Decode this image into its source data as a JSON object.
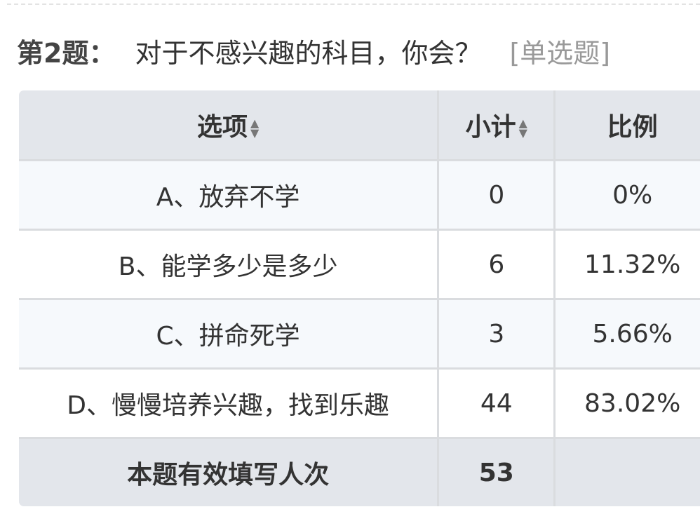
{
  "question": {
    "number": "第2题：",
    "text": "对于不感兴趣的科目，你会？",
    "type": "[单选题]"
  },
  "table": {
    "headers": [
      "选项",
      "小计",
      "比例"
    ],
    "sort_icon": "sort-up-down-icon",
    "rows": [
      {
        "option": "A、放弃不学",
        "count": "0",
        "percent": "0%"
      },
      {
        "option": "B、能学多少是多少",
        "count": "6",
        "percent": "11.32%"
      },
      {
        "option": "C、拼命死学",
        "count": "3",
        "percent": "5.66%"
      },
      {
        "option": "D、慢慢培养兴趣，找到乐趣",
        "count": "44",
        "percent": "83.02%"
      }
    ],
    "footer": {
      "label": "本题有效填写人次",
      "count": "53"
    }
  }
}
